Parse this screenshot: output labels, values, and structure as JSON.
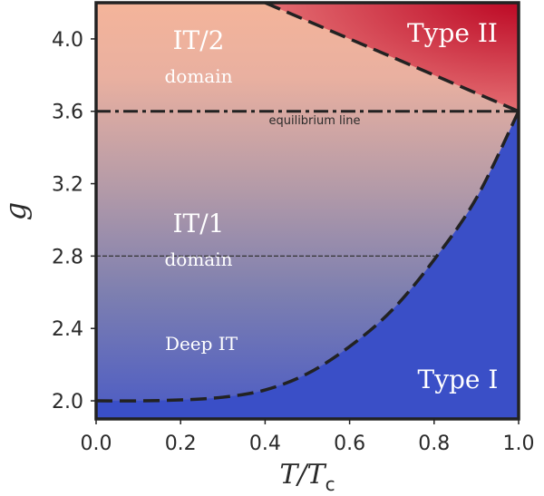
{
  "chart_data": {
    "type": "phase-diagram",
    "xlabel_main": "T/T",
    "xlabel_sub": "c",
    "ylabel": "g",
    "xlim": [
      0.0,
      1.0
    ],
    "ylim": [
      1.9,
      4.2
    ],
    "xticks": [
      "0.0",
      "0.2",
      "0.4",
      "0.6",
      "0.8",
      "1.0"
    ],
    "xtick_values": [
      0.0,
      0.2,
      0.4,
      0.6,
      0.8,
      1.0
    ],
    "yticks": [
      "2.0",
      "2.4",
      "2.8",
      "3.2",
      "3.6",
      "4.0"
    ],
    "ytick_values": [
      2.0,
      2.4,
      2.8,
      3.2,
      3.6,
      4.0
    ],
    "equilibrium_g": 3.6,
    "equilibrium_label": "equilibrium line",
    "it1_line_g": 2.8,
    "type1_boundary": [
      [
        0.0,
        2.0
      ],
      [
        0.1,
        2.0
      ],
      [
        0.2,
        2.005
      ],
      [
        0.3,
        2.02
      ],
      [
        0.4,
        2.06
      ],
      [
        0.5,
        2.15
      ],
      [
        0.6,
        2.3
      ],
      [
        0.7,
        2.5
      ],
      [
        0.8,
        2.78
      ],
      [
        0.9,
        3.12
      ],
      [
        1.0,
        3.6
      ]
    ],
    "type2_boundary": [
      [
        0.4,
        4.2
      ],
      [
        1.0,
        3.6
      ]
    ],
    "labels": {
      "it2": "IT/2",
      "it2_domain": "domain",
      "it1": "IT/1",
      "it1_domain": "domain",
      "deep_it": "Deep IT",
      "type1": "Type I",
      "type2": "Type II"
    },
    "colors": {
      "top_gradient": "#f4b49a",
      "mid_gradient": "#b39aa8",
      "bottom_gradient": "#4b5bc5",
      "type1_fill": "#3a4fc7",
      "type2_fill_light": "#e8787a",
      "type2_fill_dark": "#b9001e",
      "frame": "#222222"
    }
  }
}
